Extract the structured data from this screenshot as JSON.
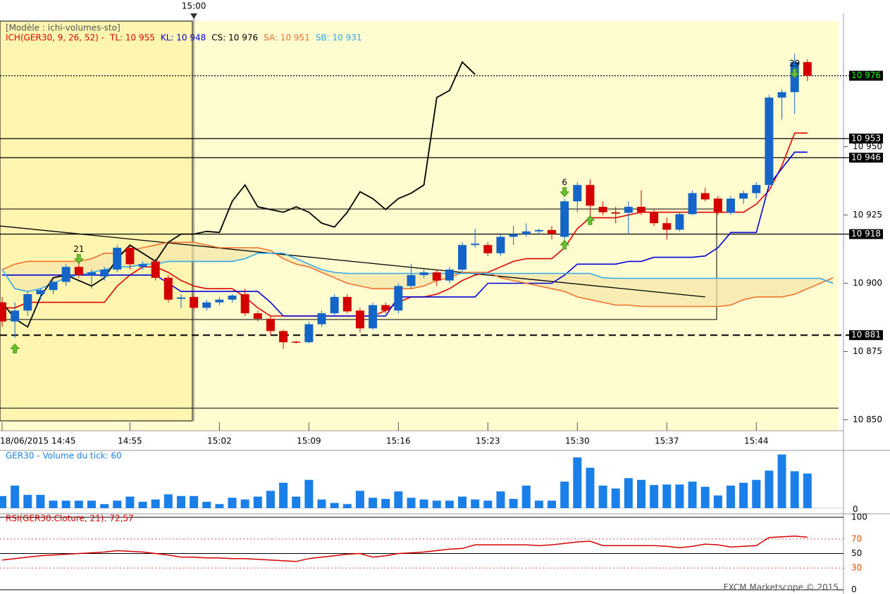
{
  "chart_data": {
    "type": "candlestick",
    "template": "[Modèle : ichi-volumes-sto]",
    "header": [
      {
        "text": "ICH(GER30, 9, 26, 52) -",
        "color": "#e00000"
      },
      {
        "text": "TL: 10 955",
        "color": "#e00000"
      },
      {
        "text": "KL: 10 948",
        "color": "#0000dd"
      },
      {
        "text": "CS: 10 976",
        "color": "#000000"
      },
      {
        "text": "SA: 10 951",
        "color": "#f07030"
      },
      {
        "text": "SB: 10 931",
        "color": "#30a8f0"
      }
    ],
    "categories": [
      "18/06/2015 14:45",
      null,
      null,
      null,
      null,
      null,
      null,
      null,
      null,
      null,
      "14:55",
      null,
      null,
      null,
      null,
      null,
      null,
      "15:02",
      null,
      null,
      null,
      null,
      null,
      null,
      "15:09",
      null,
      null,
      null,
      null,
      null,
      null,
      "15:16",
      null,
      null,
      null,
      null,
      null,
      null,
      "15:23",
      null,
      null,
      null,
      null,
      null,
      null,
      "15:30",
      null,
      null,
      null,
      null,
      null,
      null,
      "15:37",
      null,
      null,
      null,
      null,
      null,
      null,
      "15:44",
      null,
      null,
      null,
      null,
      null,
      null
    ],
    "time_marker": {
      "index": 15,
      "label": "15:00"
    },
    "open": [
      10893,
      10886,
      10890,
      10896,
      10897.5,
      10900.5,
      10906,
      10903,
      10902.5,
      10905,
      10913,
      10906,
      10908,
      10902,
      10894.3,
      10895,
      10891,
      10893,
      10894,
      10896,
      10889,
      10887,
      10882.5,
      10878.6,
      10878.4,
      10885,
      10889,
      10895,
      10890,
      10883.5,
      10892,
      10890,
      10899,
      10903,
      10904,
      10901,
      10905,
      10914,
      10914,
      10911,
      10917,
      10918,
      10919,
      10919.5,
      10917,
      10930,
      10936,
      10928,
      10926,
      10925.8,
      10928,
      10926,
      10922,
      10919.6,
      10925.3,
      10933,
      10931,
      10925.8,
      10931,
      10933,
      10936,
      10968,
      10970,
      10981,
      null,
      null
    ],
    "high": [
      10895,
      10893,
      10897,
      10898,
      10901,
      10907,
      10908,
      10905,
      10906,
      10914,
      10914,
      10908,
      10909,
      10903,
      10896,
      10896,
      10894,
      10895,
      10896,
      10898,
      10890,
      10888,
      10883,
      10879,
      10886,
      10890,
      10896,
      10896,
      10891,
      10893,
      10893,
      10900,
      10907,
      10905,
      10905,
      10906,
      10915,
      10920,
      10915,
      10918,
      10921,
      10922,
      10920,
      10921,
      10931,
      10937,
      10938,
      10930,
      10928,
      10930,
      10934,
      10927,
      10924,
      10926,
      10934,
      10935,
      10932,
      10932,
      10934,
      10937,
      10969,
      10971,
      10984,
      10982,
      null,
      null
    ],
    "low": [
      10884,
      10880,
      10888,
      10894,
      10896,
      10899,
      10902,
      10898,
      10901,
      10904,
      10905,
      10905,
      10901,
      10893,
      10891,
      10890,
      10890,
      10892,
      10893,
      10888,
      10886,
      10881,
      10876,
      10878,
      10878,
      10884,
      10888,
      10889,
      10882,
      10883,
      10889,
      10889,
      10898,
      10902,
      10899,
      10900,
      10904,
      10913,
      10910,
      10910,
      10914,
      10917,
      10918,
      10916,
      10916,
      10926,
      10922,
      10925,
      10922,
      10918,
      10925,
      10921,
      10916,
      10919,
      10925,
      10930,
      10925,
      10925,
      10929,
      10931,
      10935,
      10960,
      10962,
      10974,
      null,
      null
    ],
    "close": [
      10886,
      10890,
      10896,
      10897.5,
      10900.5,
      10906,
      10903,
      10904,
      10905,
      10913,
      10907,
      10907,
      10902,
      10894,
      10894.8,
      10891,
      10893,
      10894,
      10895.5,
      10889,
      10887,
      10882.5,
      10878.4,
      10878.4,
      10885,
      10889,
      10895,
      10889.7,
      10883.5,
      10892,
      10890,
      10899,
      10903,
      10904,
      10901,
      10905,
      10914,
      10914.5,
      10911,
      10917,
      10918,
      10919,
      10919.5,
      10918,
      10930,
      10936,
      10928.4,
      10926,
      10925.5,
      10928,
      10926,
      10922,
      10919.6,
      10925.3,
      10933,
      10930.7,
      10925.8,
      10931,
      10933,
      10936,
      10968,
      10970,
      10981,
      10976,
      null,
      null
    ],
    "up_color": "#1565c8",
    "down_color": "#d40000",
    "ylim": [
      10846,
      10996
    ],
    "yticks": [
      {
        "value": 10850,
        "label": "10 850"
      },
      {
        "value": 10875,
        "label": "10 875"
      },
      {
        "value": 10900,
        "label": "10 900"
      },
      {
        "value": 10925,
        "label": "10 925"
      },
      {
        "value": 10950,
        "label": "10 950"
      }
    ],
    "levels": [
      {
        "value": 10976,
        "label": "10 976",
        "style": "dotted",
        "label_color": "#00ff00"
      },
      {
        "value": 10953,
        "label": "10 953",
        "style": "solid",
        "label_color": "#ffffff"
      },
      {
        "value": 10946,
        "label": "10 946",
        "style": "solid",
        "label_color": "#ffffff"
      },
      {
        "value": 10918,
        "label": "10 918",
        "style": "solid",
        "label_color": "#ffffff"
      },
      {
        "value": 10881,
        "label": "10 881",
        "style": "dashed",
        "label_color": "#ffffff"
      }
    ],
    "lines": [
      {
        "color": "#e00000",
        "values": [
          10891,
          10891,
          10893,
          10893,
          10893,
          10893,
          10893,
          10893,
          10893,
          10899,
          10903,
          10906,
          10906,
          10904,
          10901,
          10899,
          10898,
          10898,
          10898,
          10895,
          10891,
          10888,
          10888,
          10888,
          10888,
          10888,
          10888,
          10888,
          10888,
          10888,
          10890,
          10893,
          10895,
          10895,
          10896,
          10898,
          10901,
          10903,
          10904,
          10906,
          10908,
          10909,
          10909,
          10909,
          10913,
          10920,
          10924,
          10924,
          10924,
          10925,
          10926,
          10926,
          10926,
          10926,
          10926,
          10926,
          10926,
          10926,
          10926,
          10929,
          10934,
          10943,
          10955,
          10955,
          null,
          null
        ]
      },
      {
        "color": "#0000dd",
        "values": [
          10903,
          10903,
          10903,
          10903,
          10903,
          10903,
          10903,
          10903,
          10903,
          10903,
          10903,
          10903,
          10903,
          10900,
          10897,
          10897,
          10897,
          10897,
          10897,
          10897,
          10897,
          10893,
          10888,
          10888,
          10888,
          10888,
          10888,
          10888,
          10888,
          10888,
          10888,
          10895,
          10895,
          10895,
          10895,
          10895,
          10895,
          10895,
          10900,
          10900,
          10900,
          10900,
          10900,
          10900,
          10903,
          10907,
          10907,
          10907,
          10907,
          10908,
          10908,
          10909.5,
          10909.5,
          10909.5,
          10909.5,
          10910,
          10913,
          10918.6,
          10918.6,
          10918.6,
          10936,
          10942,
          10948,
          10948,
          null,
          null
        ]
      },
      {
        "color": "#f07030",
        "values": [
          10905,
          10907,
          10908,
          10908,
          10908,
          10908,
          10908,
          10909,
          10911,
          10911,
          10912,
          10913,
          10914,
          10915,
          10915,
          10915,
          10914,
          10913,
          10913,
          10913,
          10913,
          10912,
          10909,
          10907,
          10906,
          10904,
          10902,
          10900,
          10899,
          10898,
          10898,
          10898,
          10898,
          10899,
          10901,
          10902,
          10904,
          10904,
          10904,
          10902,
          10901,
          10900,
          10899,
          10898,
          10897,
          10895,
          10894,
          10893,
          10892,
          10892,
          10891.5,
          10891.5,
          10891.5,
          10891.5,
          10891.5,
          10891.5,
          10891.5,
          10892,
          10894,
          10895,
          10895,
          10895,
          10896,
          10898,
          10900,
          10902
        ]
      },
      {
        "color": "#30a8f0",
        "values": [
          10905,
          10898,
          10897,
          10898,
          10900,
          10902,
          10903,
          10904,
          10905,
          10906,
          10906,
          10907,
          10907,
          10908,
          10908,
          10908,
          10908,
          10908,
          10908,
          10909,
          10911,
          10911,
          10911,
          10909,
          10907,
          10905,
          10904,
          10903.6,
          10903.6,
          10903.6,
          10903.6,
          10903.6,
          10903.6,
          10903.6,
          10903.6,
          10903.6,
          10903.6,
          10903.6,
          10903.6,
          10903.6,
          10903.6,
          10903.6,
          10903.6,
          10903.6,
          10903.6,
          10903.6,
          10903.6,
          10902,
          10901.8,
          10901.8,
          10901.8,
          10901.8,
          10901.8,
          10901.8,
          10901.8,
          10901.8,
          10901.8,
          10901.8,
          10901.8,
          10901.8,
          10901.8,
          10901.8,
          10901.8,
          10901.8,
          10901.8,
          10900
        ]
      },
      {
        "color": "#000000",
        "values": [
          10893,
          10887,
          10884,
          10895,
          10902,
          10903,
          10901,
          10899,
          10902,
          10909,
          10914,
          10911,
          10908,
          10915,
          10918,
          10918,
          10919,
          10918.6,
          10930,
          10936,
          10928,
          10927,
          10926,
          10928,
          10926,
          10922,
          10920.6,
          10926,
          10933.5,
          10931,
          10927,
          10931,
          10933,
          10936,
          10968,
          10970.6,
          10981,
          10976.5,
          null,
          null,
          null,
          null,
          null,
          null,
          null,
          null,
          null,
          null,
          null,
          null,
          null,
          null,
          null,
          null,
          null,
          null,
          null,
          null,
          null,
          null,
          null,
          null,
          null,
          null,
          null,
          null
        ]
      }
    ],
    "cloud_color": "#f3e6a8",
    "trendline": {
      "x": [
        -0.2,
        55
      ],
      "y": [
        10921,
        10895
      ]
    },
    "signals": [
      {
        "x": 1,
        "y": 10876,
        "dir": "up"
      },
      {
        "x": 6,
        "y": 10909,
        "dir": "down",
        "label": "21"
      },
      {
        "x": 44,
        "y": 10933.5,
        "dir": "down",
        "label": "6"
      },
      {
        "x": 44,
        "y": 10914,
        "dir": "up"
      },
      {
        "x": 46,
        "y": 10923,
        "dir": "up"
      },
      {
        "x": 62,
        "y": 10977,
        "dir": "down",
        "label": "29"
      }
    ],
    "volume": {
      "title": "GER30 - Volume du tick: 60",
      "color": "#1a7fe8",
      "ylim": [
        0,
        100
      ],
      "yticks": [
        0
      ],
      "values": [
        21,
        39,
        23,
        23,
        13,
        13,
        13,
        13,
        7,
        13,
        20,
        11,
        15,
        24,
        21,
        21,
        11,
        7,
        18,
        15,
        20,
        30,
        44,
        20,
        49,
        15,
        9,
        7,
        30,
        18,
        16,
        29,
        18,
        15,
        13,
        13,
        20,
        15,
        13,
        29,
        16,
        39,
        13,
        13,
        46,
        88,
        70,
        39,
        34,
        52,
        49,
        40,
        41,
        41,
        46,
        37,
        22,
        39,
        44,
        49,
        65,
        93,
        64,
        60,
        null,
        null
      ]
    },
    "rsi": {
      "title": "RSI(GER30.Cloture, 21): 72,57",
      "color": "#d40000",
      "ylim": [
        0,
        100
      ],
      "yticks": [
        100,
        70,
        50,
        30,
        0
      ],
      "values": [
        41,
        43,
        45,
        47,
        48,
        49,
        50,
        51,
        52,
        54,
        53,
        52,
        50,
        48,
        45,
        45,
        44,
        44,
        43,
        43,
        42,
        41,
        40,
        39,
        43,
        45,
        47,
        49,
        50,
        45,
        47,
        50,
        51,
        52,
        54,
        56,
        57,
        62,
        62,
        62,
        62,
        62,
        61,
        62,
        64,
        66,
        67,
        61,
        61,
        61,
        61,
        61,
        60,
        58,
        60,
        63,
        62,
        59,
        60,
        61,
        72,
        73,
        74,
        72.57,
        null,
        null
      ]
    },
    "footer": "FXCM Marketscope © 2015"
  }
}
